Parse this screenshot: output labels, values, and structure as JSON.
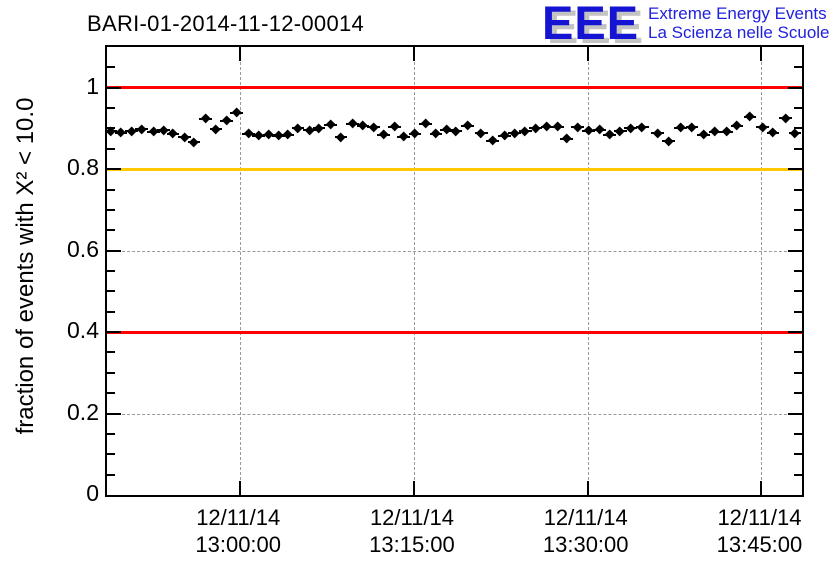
{
  "header": {
    "title": "BARI-01-2014-11-12-00014",
    "logo": {
      "acronym": "EEE",
      "line1": "Extreme Energy Events",
      "line2": "La Scienza nelle Scuole",
      "text_color": "#2121dd",
      "acronym_color": "#1414d2",
      "shadow_color": "#c3c3c3"
    }
  },
  "chart_data": {
    "type": "scatter",
    "title": "BARI-01-2014-11-12-00014",
    "xlabel": "",
    "ylabel": "fraction of events with X² < 10.0",
    "x_unit": "minutes relative to 12/11/14 13:00:00",
    "x_range": [
      -11.5,
      48.5
    ],
    "y_range": [
      0,
      1.1
    ],
    "grid": "dashed gray lines at major ticks, mirrored inward ticks on all four sides",
    "legend": "none",
    "y_tick_values": [
      0,
      0.2,
      0.4,
      0.6,
      0.8,
      1.0
    ],
    "y_tick_labels": [
      "0",
      "0.2",
      "0.4",
      "0.6",
      "0.8",
      "1"
    ],
    "y_minor_step": 0.05,
    "x_ticks": [
      {
        "minutes": 0,
        "date": "12/11/14",
        "time": "13:00:00"
      },
      {
        "minutes": 15,
        "date": "12/11/14",
        "time": "13:15:00"
      },
      {
        "minutes": 30,
        "date": "12/11/14",
        "time": "13:30:00"
      },
      {
        "minutes": 45,
        "date": "12/11/14",
        "time": "13:45:00"
      }
    ],
    "reference_lines": [
      {
        "y": 1.0,
        "color": "#ff0000"
      },
      {
        "y": 0.8,
        "color": "#ffc800"
      },
      {
        "y": 0.4,
        "color": "#ff0000"
      }
    ],
    "marker": {
      "shape": "diamond",
      "color": "#000000",
      "x_error_minutes": 0.55
    },
    "series": [
      {
        "name": "fraction of events with X² < 10.0",
        "points": [
          [
            -11.2,
            0.893
          ],
          [
            -10.3,
            0.889
          ],
          [
            -9.4,
            0.893
          ],
          [
            -8.5,
            0.898
          ],
          [
            -7.5,
            0.892
          ],
          [
            -6.6,
            0.895
          ],
          [
            -5.8,
            0.886
          ],
          [
            -4.8,
            0.878
          ],
          [
            -4.0,
            0.866
          ],
          [
            -3.0,
            0.923
          ],
          [
            -2.1,
            0.898
          ],
          [
            -1.2,
            0.919
          ],
          [
            -0.3,
            0.938
          ],
          [
            0.7,
            0.886
          ],
          [
            1.6,
            0.882
          ],
          [
            2.5,
            0.885
          ],
          [
            3.3,
            0.881
          ],
          [
            4.1,
            0.884
          ],
          [
            5.0,
            0.9
          ],
          [
            6.0,
            0.895
          ],
          [
            6.8,
            0.9
          ],
          [
            7.8,
            0.908
          ],
          [
            8.7,
            0.878
          ],
          [
            9.7,
            0.911
          ],
          [
            10.6,
            0.907
          ],
          [
            11.5,
            0.903
          ],
          [
            12.4,
            0.885
          ],
          [
            13.3,
            0.904
          ],
          [
            14.1,
            0.88
          ],
          [
            15.1,
            0.887
          ],
          [
            16.0,
            0.911
          ],
          [
            16.9,
            0.887
          ],
          [
            17.8,
            0.897
          ],
          [
            18.6,
            0.893
          ],
          [
            19.6,
            0.906
          ],
          [
            20.8,
            0.888
          ],
          [
            21.8,
            0.87
          ],
          [
            22.8,
            0.882
          ],
          [
            23.7,
            0.888
          ],
          [
            24.6,
            0.893
          ],
          [
            25.5,
            0.9
          ],
          [
            26.5,
            0.904
          ],
          [
            27.4,
            0.904
          ],
          [
            28.2,
            0.874
          ],
          [
            29.1,
            0.903
          ],
          [
            30.1,
            0.894
          ],
          [
            31.0,
            0.896
          ],
          [
            31.9,
            0.884
          ],
          [
            32.8,
            0.893
          ],
          [
            33.7,
            0.9
          ],
          [
            34.7,
            0.903
          ],
          [
            36.0,
            0.888
          ],
          [
            37.0,
            0.868
          ],
          [
            38.0,
            0.901
          ],
          [
            39.0,
            0.903
          ],
          [
            40.0,
            0.884
          ],
          [
            41.0,
            0.892
          ],
          [
            42.0,
            0.892
          ],
          [
            42.9,
            0.906
          ],
          [
            44.0,
            0.928
          ],
          [
            45.1,
            0.903
          ],
          [
            46.0,
            0.89
          ],
          [
            47.1,
            0.925
          ],
          [
            47.9,
            0.888
          ]
        ]
      }
    ]
  }
}
